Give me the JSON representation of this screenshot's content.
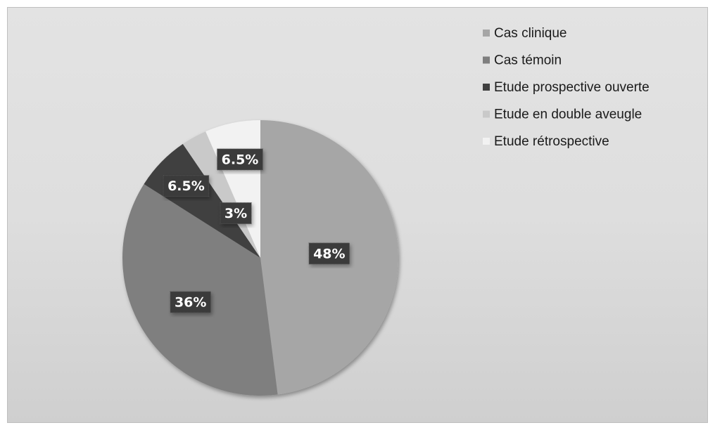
{
  "chart_data": {
    "type": "pie",
    "categories": [
      "Cas clinique",
      "Cas témoin",
      "Etude prospective ouverte",
      "Etude en double aveugle",
      "Etude rétrospective"
    ],
    "values": [
      48,
      36,
      6.5,
      3,
      6.5
    ],
    "value_labels": [
      "48%",
      "36%",
      "6.5%",
      "3%",
      "6.5%"
    ],
    "colors": [
      "#a6a6a6",
      "#7f7f7f",
      "#404040",
      "#c9c9c9",
      "#f2f2f2"
    ],
    "legend": "top-right"
  }
}
